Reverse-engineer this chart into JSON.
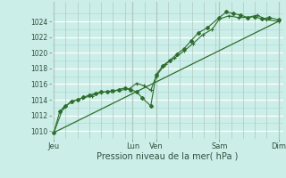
{
  "xlabel": "Pression niveau de la mer( hPa )",
  "bg_color": "#cceee8",
  "plot_bg_color": "#cceee8",
  "line_color": "#2d6e2d",
  "ylim": [
    1009.0,
    1026.5
  ],
  "yticks": [
    1010,
    1012,
    1014,
    1016,
    1018,
    1020,
    1022,
    1024
  ],
  "day_labels": [
    "Jeu",
    "Lun",
    "Ven",
    "Sam",
    "Dim"
  ],
  "day_positions": [
    0.0,
    3.333,
    4.333,
    7.0,
    9.5
  ],
  "xlim": [
    -0.1,
    9.7
  ],
  "series1_x": [
    0.0,
    0.25,
    0.5,
    0.75,
    1.0,
    1.25,
    1.5,
    1.75,
    2.0,
    2.25,
    2.5,
    2.75,
    3.0,
    3.25,
    3.5,
    3.75,
    4.1,
    4.33,
    4.6,
    4.9,
    5.2,
    5.5,
    5.8,
    6.1,
    6.5,
    7.0,
    7.3,
    7.6,
    7.9,
    8.2,
    8.5,
    8.8,
    9.1,
    9.5
  ],
  "series1_y": [
    1009.8,
    1012.5,
    1013.2,
    1013.8,
    1014.0,
    1014.3,
    1014.6,
    1014.8,
    1015.0,
    1015.0,
    1015.1,
    1015.3,
    1015.5,
    1015.3,
    1015.0,
    1014.2,
    1013.2,
    1017.2,
    1018.3,
    1019.0,
    1019.8,
    1020.5,
    1021.5,
    1022.5,
    1023.2,
    1024.5,
    1025.2,
    1025.0,
    1024.8,
    1024.5,
    1024.6,
    1024.3,
    1024.5,
    1024.2
  ],
  "series2_x": [
    0.0,
    0.4,
    0.8,
    1.2,
    1.6,
    2.0,
    2.4,
    2.8,
    3.2,
    3.5,
    3.8,
    4.1,
    4.33,
    4.7,
    5.1,
    5.5,
    5.9,
    6.3,
    6.7,
    7.0,
    7.4,
    7.8,
    8.2,
    8.6,
    9.0,
    9.5
  ],
  "series2_y": [
    1009.8,
    1013.0,
    1013.8,
    1014.2,
    1014.5,
    1014.9,
    1015.1,
    1015.2,
    1015.4,
    1016.1,
    1015.8,
    1015.2,
    1017.0,
    1018.5,
    1019.3,
    1020.2,
    1021.2,
    1022.3,
    1023.0,
    1024.3,
    1024.7,
    1024.5,
    1024.5,
    1024.8,
    1024.2,
    1024.0
  ],
  "trend_x": [
    0.0,
    9.5
  ],
  "trend_y": [
    1009.8,
    1024.0
  ],
  "major_vlines": [
    0.0,
    3.333,
    4.333,
    7.0,
    9.5
  ],
  "minor_vlines": [
    0.5,
    1.0,
    1.5,
    2.0,
    2.5,
    3.0,
    3.833,
    4.833,
    5.333,
    5.833,
    6.333,
    6.833,
    7.5,
    8.0,
    8.5,
    9.0
  ],
  "major_hlines": [
    1010,
    1012,
    1014,
    1016,
    1018,
    1020,
    1022,
    1024
  ],
  "minor_hlines": [
    1011,
    1013,
    1015,
    1017,
    1019,
    1021,
    1023,
    1025
  ]
}
